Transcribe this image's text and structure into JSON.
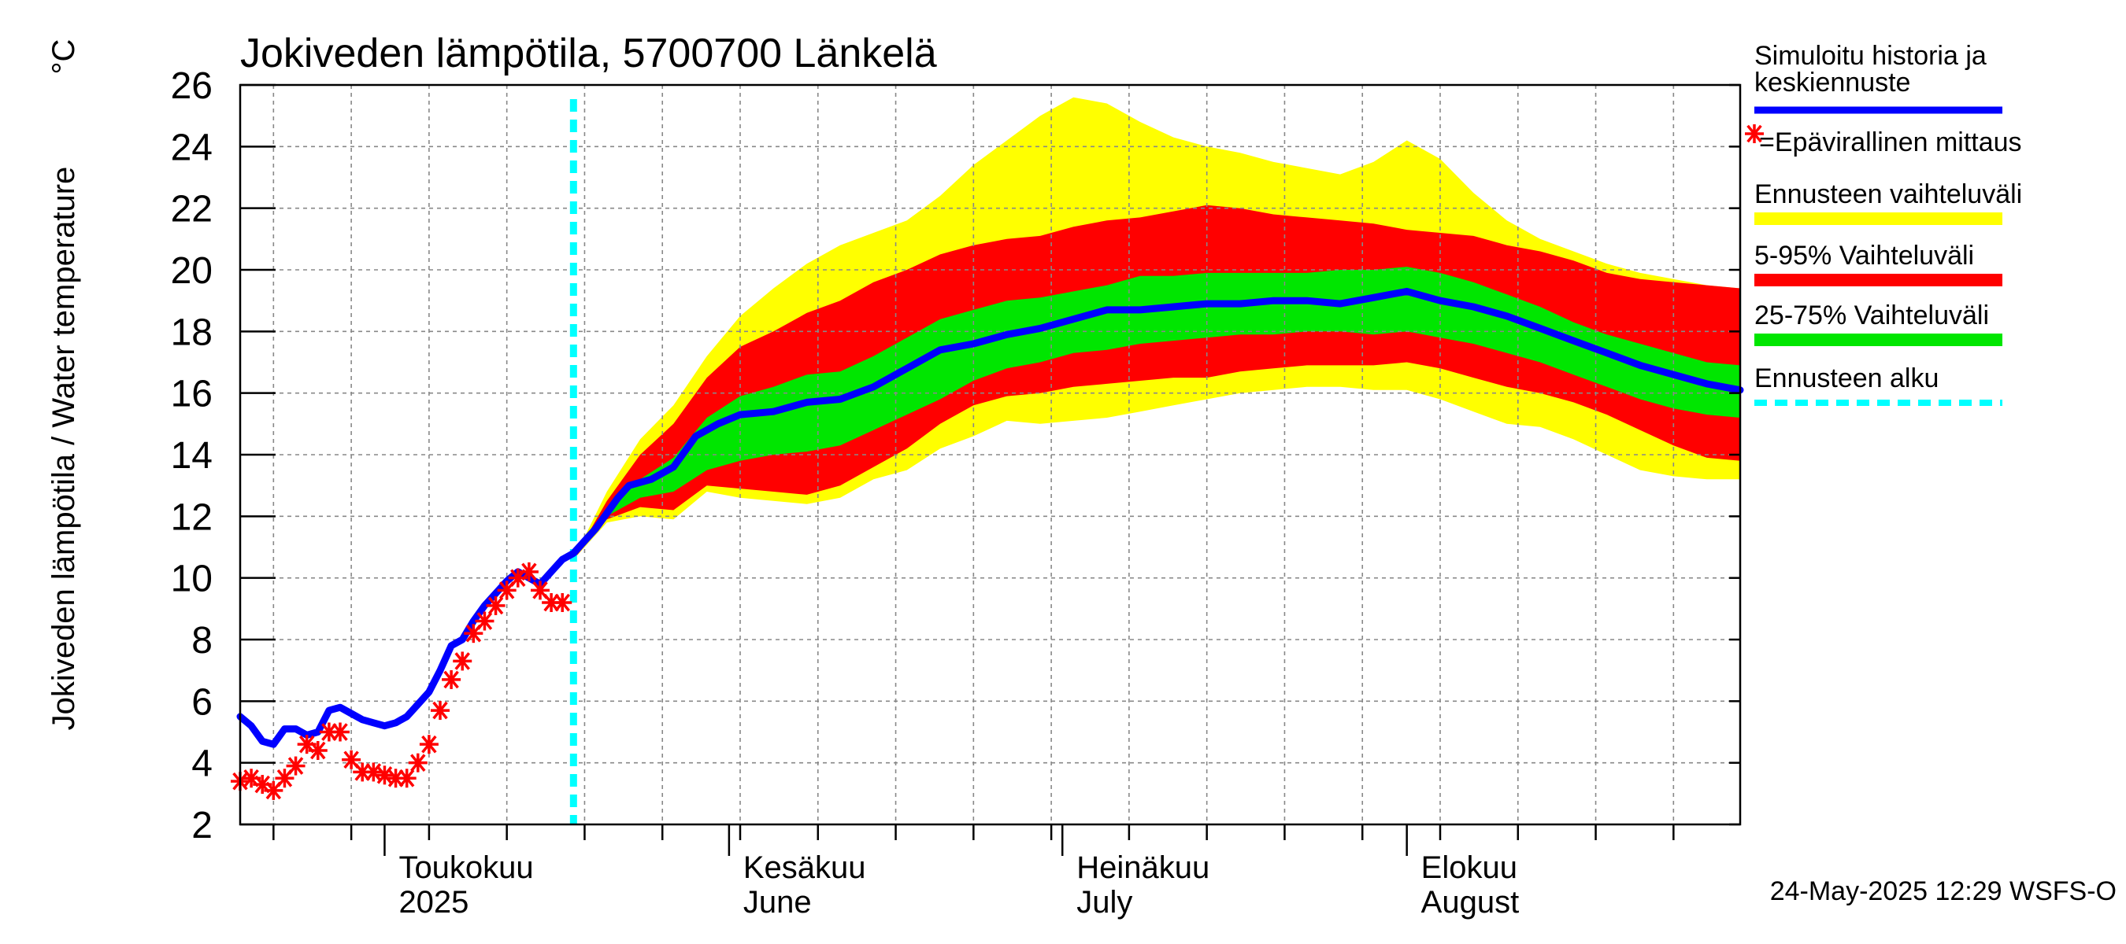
{
  "chart_data": {
    "type": "area",
    "title": "Jokiveden lämpötila, 5700700 Länkelä",
    "ylabel": "Jokiveden lämpötila / Water temperature",
    "yunit": "°C",
    "ylim": [
      2,
      26
    ],
    "yticks": [
      2,
      4,
      6,
      8,
      10,
      12,
      14,
      16,
      18,
      20,
      22,
      24,
      26
    ],
    "xlim": [
      "2025-04-18",
      "2025-08-31"
    ],
    "grid": true,
    "xtick_labels": [
      {
        "date": "2025-05-01",
        "line1": "Toukokuu",
        "line2": "2025"
      },
      {
        "date": "2025-06-01",
        "line1": "Kesäkuu",
        "line2": "June"
      },
      {
        "date": "2025-07-01",
        "line1": "Heinäkuu",
        "line2": "July"
      },
      {
        "date": "2025-08-01",
        "line1": "Elokuu",
        "line2": "August"
      }
    ],
    "forecast_start": "2025-05-18",
    "colors": {
      "sim": "#0000ff",
      "obs": "#ff0000",
      "range": "#ffff00",
      "p5_95": "#ff0000",
      "p25_75": "#00e600",
      "forecast_start": "#00ffff"
    },
    "simulated": {
      "dates": [
        "2025-04-18",
        "2025-04-19",
        "2025-04-20",
        "2025-04-21",
        "2025-04-22",
        "2025-04-23",
        "2025-04-24",
        "2025-04-25",
        "2025-04-26",
        "2025-04-27",
        "2025-04-28",
        "2025-04-29",
        "2025-04-30",
        "2025-05-01",
        "2025-05-02",
        "2025-05-03",
        "2025-05-04",
        "2025-05-05",
        "2025-05-06",
        "2025-05-07",
        "2025-05-08",
        "2025-05-09",
        "2025-05-10",
        "2025-05-11",
        "2025-05-12",
        "2025-05-13",
        "2025-05-14",
        "2025-05-15",
        "2025-05-16",
        "2025-05-17",
        "2025-05-18",
        "2025-05-19",
        "2025-05-20",
        "2025-05-21",
        "2025-05-22",
        "2025-05-23",
        "2025-05-25",
        "2025-05-27",
        "2025-05-29",
        "2025-05-31",
        "2025-06-02",
        "2025-06-05",
        "2025-06-08",
        "2025-06-11",
        "2025-06-14",
        "2025-06-17",
        "2025-06-20",
        "2025-06-23",
        "2025-06-26",
        "2025-06-29",
        "2025-07-02",
        "2025-07-05",
        "2025-07-08",
        "2025-07-11",
        "2025-07-14",
        "2025-07-17",
        "2025-07-20",
        "2025-07-23",
        "2025-07-26",
        "2025-07-29",
        "2025-08-01",
        "2025-08-04",
        "2025-08-07",
        "2025-08-10",
        "2025-08-13",
        "2025-08-16",
        "2025-08-19",
        "2025-08-22",
        "2025-08-25",
        "2025-08-28",
        "2025-08-31"
      ],
      "values": [
        5.5,
        5.2,
        4.7,
        4.6,
        5.1,
        5.1,
        4.9,
        5.0,
        5.7,
        5.8,
        5.6,
        5.4,
        5.3,
        5.2,
        5.3,
        5.5,
        5.9,
        6.3,
        7.0,
        7.8,
        8.0,
        8.6,
        9.1,
        9.5,
        9.9,
        10.2,
        10.0,
        9.8,
        10.2,
        10.6,
        10.8,
        11.2,
        11.6,
        12.1,
        12.6,
        13.0,
        13.2,
        13.6,
        14.6,
        15.0,
        15.3,
        15.4,
        15.7,
        15.8,
        16.2,
        16.8,
        17.4,
        17.6,
        17.9,
        18.1,
        18.4,
        18.7,
        18.7,
        18.8,
        18.9,
        18.9,
        19.0,
        19.0,
        18.9,
        19.1,
        19.3,
        19.0,
        18.8,
        18.5,
        18.1,
        17.7,
        17.3,
        16.9,
        16.6,
        16.3,
        16.1
      ]
    },
    "observed": {
      "dates": [
        "2025-04-18",
        "2025-04-19",
        "2025-04-20",
        "2025-04-21",
        "2025-04-22",
        "2025-04-23",
        "2025-04-24",
        "2025-04-25",
        "2025-04-26",
        "2025-04-27",
        "2025-04-28",
        "2025-04-29",
        "2025-04-30",
        "2025-05-01",
        "2025-05-02",
        "2025-05-03",
        "2025-05-04",
        "2025-05-05",
        "2025-05-06",
        "2025-05-07",
        "2025-05-08",
        "2025-05-09",
        "2025-05-10",
        "2025-05-11",
        "2025-05-12",
        "2025-05-13",
        "2025-05-14",
        "2025-05-15",
        "2025-05-16",
        "2025-05-17"
      ],
      "values": [
        3.4,
        3.5,
        3.3,
        3.1,
        3.5,
        3.9,
        4.6,
        4.4,
        5.0,
        5.0,
        4.1,
        3.7,
        3.7,
        3.6,
        3.5,
        3.5,
        4.0,
        4.6,
        5.7,
        6.7,
        7.3,
        8.2,
        8.6,
        9.1,
        9.6,
        10.0,
        10.2,
        9.6,
        9.2,
        9.2
      ]
    },
    "bands": {
      "dates": [
        "2025-05-18",
        "2025-05-21",
        "2025-05-24",
        "2025-05-27",
        "2025-05-30",
        "2025-06-02",
        "2025-06-05",
        "2025-06-08",
        "2025-06-11",
        "2025-06-14",
        "2025-06-17",
        "2025-06-20",
        "2025-06-23",
        "2025-06-26",
        "2025-06-29",
        "2025-07-02",
        "2025-07-05",
        "2025-07-08",
        "2025-07-11",
        "2025-07-14",
        "2025-07-17",
        "2025-07-20",
        "2025-07-23",
        "2025-07-26",
        "2025-07-29",
        "2025-08-01",
        "2025-08-04",
        "2025-08-07",
        "2025-08-10",
        "2025-08-13",
        "2025-08-16",
        "2025-08-19",
        "2025-08-22",
        "2025-08-25",
        "2025-08-28",
        "2025-08-31"
      ],
      "min": [
        10.6,
        11.8,
        12.0,
        11.9,
        12.8,
        12.6,
        12.5,
        12.4,
        12.6,
        13.2,
        13.5,
        14.2,
        14.6,
        15.1,
        15.0,
        15.1,
        15.2,
        15.4,
        15.6,
        15.8,
        16.0,
        16.1,
        16.2,
        16.2,
        16.1,
        16.1,
        15.8,
        15.4,
        15.0,
        14.9,
        14.5,
        14.0,
        13.5,
        13.3,
        13.2,
        13.2
      ],
      "p5": [
        10.6,
        11.9,
        12.3,
        12.2,
        13.0,
        12.9,
        12.8,
        12.7,
        13.0,
        13.6,
        14.2,
        15.0,
        15.6,
        15.9,
        16.0,
        16.2,
        16.3,
        16.4,
        16.5,
        16.5,
        16.7,
        16.8,
        16.9,
        16.9,
        16.9,
        17.0,
        16.8,
        16.5,
        16.2,
        16.0,
        15.7,
        15.3,
        14.8,
        14.3,
        13.9,
        13.8
      ],
      "p25": [
        10.6,
        12.0,
        12.6,
        12.8,
        13.5,
        13.8,
        14.0,
        14.1,
        14.3,
        14.8,
        15.3,
        15.8,
        16.4,
        16.8,
        17.0,
        17.3,
        17.4,
        17.6,
        17.7,
        17.8,
        17.9,
        17.9,
        18.0,
        18.0,
        17.9,
        18.0,
        17.8,
        17.6,
        17.3,
        17.0,
        16.6,
        16.2,
        15.8,
        15.5,
        15.3,
        15.2
      ],
      "p75": [
        10.6,
        12.2,
        13.2,
        13.9,
        15.2,
        15.9,
        16.2,
        16.6,
        16.7,
        17.2,
        17.8,
        18.4,
        18.7,
        19.0,
        19.1,
        19.3,
        19.5,
        19.8,
        19.8,
        19.9,
        19.9,
        19.9,
        19.9,
        20.0,
        20.0,
        20.1,
        19.9,
        19.6,
        19.2,
        18.8,
        18.3,
        17.9,
        17.6,
        17.3,
        17.0,
        16.9
      ],
      "p95": [
        10.6,
        12.5,
        14.0,
        15.0,
        16.5,
        17.5,
        18.0,
        18.6,
        19.0,
        19.6,
        20.0,
        20.5,
        20.8,
        21.0,
        21.1,
        21.4,
        21.6,
        21.7,
        21.9,
        22.1,
        22.0,
        21.8,
        21.7,
        21.6,
        21.5,
        21.3,
        21.2,
        21.1,
        20.8,
        20.6,
        20.3,
        19.9,
        19.7,
        19.6,
        19.5,
        19.4
      ],
      "max": [
        10.6,
        12.8,
        14.5,
        15.6,
        17.2,
        18.5,
        19.4,
        20.2,
        20.8,
        21.2,
        21.6,
        22.4,
        23.4,
        24.2,
        25.0,
        25.6,
        25.4,
        24.8,
        24.3,
        24.0,
        23.8,
        23.5,
        23.3,
        23.1,
        23.5,
        24.2,
        23.6,
        22.5,
        21.6,
        21.0,
        20.6,
        20.2,
        19.9,
        19.7,
        19.5,
        19.4
      ]
    },
    "legend": {
      "position": "right",
      "items": [
        {
          "label_line1": "Simuloitu historia ja",
          "label_line2": "keskiennuste",
          "kind": "line",
          "color": "#0000ff"
        },
        {
          "label_line1": "=Epävirallinen mittaus",
          "label_line2": "",
          "kind": "marker",
          "color": "#ff0000"
        },
        {
          "label_line1": "Ennusteen vaihteluväli",
          "label_line2": "",
          "kind": "band",
          "color": "#ffff00"
        },
        {
          "label_line1": "5-95% Vaihteluväli",
          "label_line2": "",
          "kind": "band",
          "color": "#ff0000"
        },
        {
          "label_line1": "25-75% Vaihteluväli",
          "label_line2": "",
          "kind": "band",
          "color": "#00e600"
        },
        {
          "label_line1": "Ennusteen alku",
          "label_line2": "",
          "kind": "dashed",
          "color": "#00ffff"
        }
      ]
    },
    "timestamp": "24-May-2025 12:29 WSFS-O"
  }
}
